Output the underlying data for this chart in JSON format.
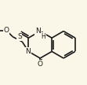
{
  "bg_color": "#fbf7e8",
  "bond_color": "#1a1a1a",
  "atom_color": "#1a1a1a",
  "figsize": [
    1.11,
    1.08
  ],
  "dpi": 100,
  "bond_lw": 1.2,
  "font_size": 6.5,
  "xlim": [
    0.0,
    1.0
  ],
  "ylim": [
    0.05,
    1.0
  ]
}
